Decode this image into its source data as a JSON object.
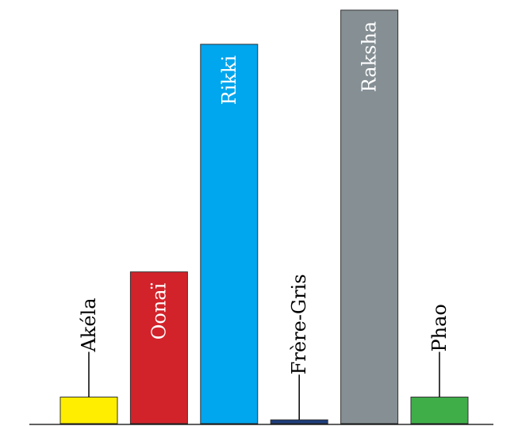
{
  "chart_data": {
    "type": "bar",
    "categories": [
      "Akéla",
      "Oonaï",
      "Rikki",
      "Frère-Gris",
      "Raksha",
      "Phao"
    ],
    "values": [
      7,
      40,
      100,
      1,
      109,
      7
    ],
    "colors": [
      "#ffee00",
      "#d2232a",
      "#00a6ee",
      "#1d3d7b",
      "#858f94",
      "#3fae49"
    ],
    "label_colors": [
      "#000000",
      "#ffffff",
      "#ffffff",
      "#000000",
      "#ffffff",
      "#000000"
    ],
    "label_position": [
      "outside",
      "inside",
      "inside",
      "outside",
      "inside",
      "outside"
    ],
    "ylim": [
      0,
      110
    ],
    "grid": false,
    "legend": "none",
    "title": "",
    "xlabel": "",
    "ylabel": ""
  }
}
